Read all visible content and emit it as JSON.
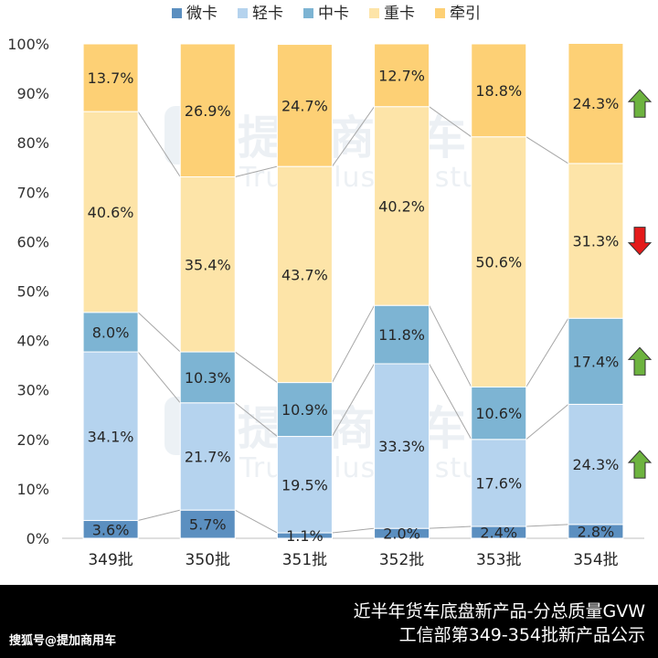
{
  "chart_data": {
    "type": "bar",
    "stacked": true,
    "percent": true,
    "categories": [
      "349批",
      "350批",
      "351批",
      "352批",
      "353批",
      "354批"
    ],
    "ylim": [
      0,
      100
    ],
    "ytick_labels": [
      "0%",
      "10%",
      "20%",
      "30%",
      "40%",
      "50%",
      "60%",
      "70%",
      "80%",
      "90%",
      "100%"
    ],
    "legend_position": "top",
    "series": [
      {
        "name": "微卡",
        "color": "#5b8fc0",
        "values": [
          3.6,
          5.7,
          1.1,
          2.0,
          2.4,
          2.8
        ],
        "labels": [
          "3.6%",
          "5.7%",
          "1.1%",
          "2.0%",
          "2.4%",
          "2.8%"
        ]
      },
      {
        "name": "轻卡",
        "color": "#b5d3ee",
        "values": [
          34.1,
          21.7,
          19.5,
          33.3,
          17.6,
          24.3
        ],
        "labels": [
          "34.1%",
          "21.7%",
          "19.5%",
          "33.3%",
          "17.6%",
          "24.3%"
        ]
      },
      {
        "name": "中卡",
        "color": "#7db4d3",
        "values": [
          8.0,
          10.3,
          10.9,
          11.8,
          10.6,
          17.4
        ],
        "labels": [
          "8.0%",
          "10.3%",
          "10.9%",
          "11.8%",
          "10.6%",
          "17.4%"
        ]
      },
      {
        "name": "重卡",
        "color": "#fde4a8",
        "values": [
          40.6,
          35.4,
          43.7,
          40.2,
          50.6,
          31.3
        ],
        "labels": [
          "40.6%",
          "35.4%",
          "43.7%",
          "40.2%",
          "50.6%",
          "31.3%"
        ]
      },
      {
        "name": "牵引",
        "color": "#fdd075",
        "values": [
          13.7,
          26.9,
          24.7,
          12.7,
          18.8,
          24.3
        ],
        "labels": [
          "13.7%",
          "26.9%",
          "24.7%",
          "12.7%",
          "18.8%",
          "24.3%"
        ]
      }
    ],
    "trend_arrows": [
      {
        "series": "牵引",
        "direction": "up",
        "color": "#6db33f"
      },
      {
        "series": "重卡",
        "direction": "down",
        "color": "#e41a1a"
      },
      {
        "series": "中卡",
        "direction": "up",
        "color": "#6db33f"
      },
      {
        "series": "轻卡",
        "direction": "up",
        "color": "#6db33f"
      }
    ],
    "watermark": {
      "cn": "提加商用车",
      "en": "TruckPlus CV studio"
    }
  },
  "footer": {
    "line1": "近半年货车底盘新产品-分总质量GVW",
    "line2": "工信部第349-354批新产品公示",
    "source": "搜狐号@提加商用车"
  }
}
